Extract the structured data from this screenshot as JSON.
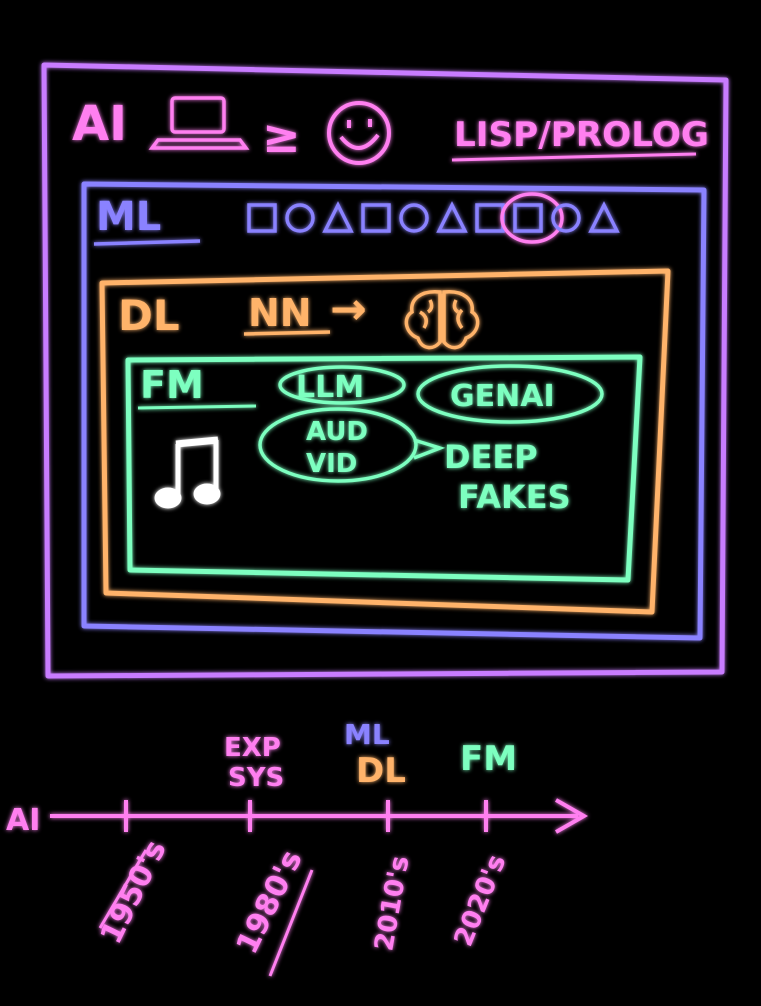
{
  "colors": {
    "purple": "#c87bff",
    "pink": "#ff7ff0",
    "blue": "#8a82ff",
    "orange": "#ffb36b",
    "green": "#7dffc0",
    "background": "#000000"
  },
  "ai_box": {
    "label": "AI",
    "laptop_icon": "laptop-icon",
    "compare": "≥",
    "smiley_icon": "smiley-face-icon",
    "languages": "LISP/PROLOG"
  },
  "ml_box": {
    "label": "ML",
    "shapes": [
      "square",
      "circle",
      "triangle",
      "square",
      "circle",
      "triangle",
      "square",
      "square",
      "circle",
      "triangle"
    ],
    "highlighted_index": 7
  },
  "dl_box": {
    "label": "DL",
    "nn": "NN",
    "arrow": "→",
    "brain_icon": "brain-icon"
  },
  "fm_box": {
    "label": "FM",
    "llm": "LLM",
    "genai": "GENAI",
    "aud": "AUD",
    "vid": "VID",
    "deep": "DEEP",
    "fakes": "FAKES",
    "music_icon": "music-note-icon"
  },
  "timeline": {
    "start_label": "AI",
    "events": [
      {
        "year": "1950's",
        "above": ""
      },
      {
        "year": "1980's",
        "above": "EXP SYS"
      },
      {
        "year": "2010's",
        "above": "ML DL"
      },
      {
        "year": "2020's",
        "above": "FM"
      }
    ],
    "above_exp": "EXP",
    "above_sys": "SYS",
    "above_ml": "ML",
    "above_dl": "DL",
    "above_fm": "FM"
  }
}
